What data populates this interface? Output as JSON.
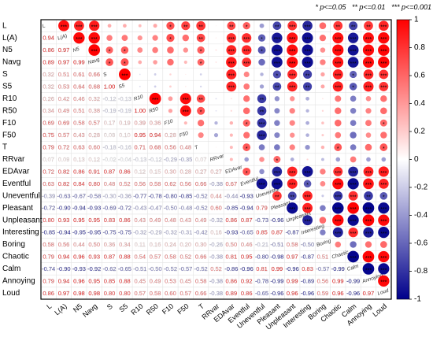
{
  "chart_data": {
    "type": "corrplot",
    "variables": [
      "L",
      "L(A)",
      "N5",
      "Navg",
      "S",
      "S5",
      "R10",
      "R50",
      "F10",
      "F50",
      "T",
      "RRvar",
      "EDAvar",
      "Eventful",
      "Uneventful",
      "Pleasant",
      "Unpleasant",
      "Interesting",
      "Boring",
      "Chaotic",
      "Calm",
      "Annoying",
      "Loud"
    ],
    "matrix": [
      [],
      [
        0.94
      ],
      [
        0.86,
        0.97
      ],
      [
        0.89,
        0.97,
        0.99
      ],
      [
        0.32,
        0.51,
        0.61,
        0.66
      ],
      [
        0.32,
        0.53,
        0.64,
        0.68,
        1.0
      ],
      [
        0.26,
        0.42,
        0.46,
        0.32,
        -0.12,
        -0.13
      ],
      [
        0.34,
        0.49,
        0.51,
        0.38,
        -0.19,
        -0.19,
        1.0
      ],
      [
        0.69,
        0.69,
        0.58,
        0.57,
        0.17,
        0.19,
        0.39,
        0.36
      ],
      [
        0.75,
        0.57,
        0.43,
        0.28,
        0.08,
        0.1,
        0.95,
        0.94,
        0.28
      ],
      [
        0.79,
        0.72,
        0.63,
        0.6,
        -0.18,
        -0.16,
        0.71,
        0.68,
        0.56,
        0.48
      ],
      [
        0.07,
        0.09,
        0.13,
        0.12,
        -0.02,
        -0.04,
        -0.13,
        -0.12,
        -0.29,
        -0.35,
        0.07
      ],
      [
        0.72,
        0.82,
        0.86,
        0.91,
        0.87,
        0.86,
        0.12,
        0.15,
        0.3,
        0.28,
        0.27,
        0.27
      ],
      [
        0.63,
        0.82,
        0.84,
        0.8,
        0.48,
        0.52,
        0.56,
        0.58,
        0.62,
        0.56,
        0.66,
        -0.38,
        0.67
      ],
      [
        -0.39,
        -0.63,
        -0.67,
        -0.58,
        -0.3,
        -0.36,
        -0.77,
        -0.78,
        -0.8,
        -0.85,
        -0.52,
        0.44,
        -0.44,
        -0.93
      ],
      [
        -0.72,
        -0.9,
        -0.94,
        -0.93,
        -0.69,
        -0.72,
        -0.43,
        -0.47,
        -0.5,
        -0.48,
        -0.52,
        0.6,
        -0.85,
        -0.94,
        0.79
      ],
      [
        0.8,
        0.93,
        0.95,
        0.95,
        0.83,
        0.86,
        0.43,
        0.49,
        0.48,
        0.43,
        0.49,
        -0.32,
        0.86,
        0.87,
        -0.73,
        -0.96
      ],
      [
        -0.85,
        -0.94,
        -0.95,
        -0.95,
        -0.75,
        -0.75,
        -0.32,
        -0.29,
        -0.32,
        -0.31,
        -0.42,
        0.16,
        -0.93,
        -0.65,
        0.85,
        0.87,
        -0.87
      ],
      [
        0.58,
        0.56,
        0.44,
        0.5,
        0.36,
        0.34,
        0.11,
        0.16,
        0.24,
        0.2,
        0.3,
        -0.26,
        0.5,
        0.46,
        -0.21,
        -0.51,
        0.58,
        -0.5
      ],
      [
        0.79,
        0.94,
        0.96,
        0.93,
        0.87,
        0.88,
        0.54,
        0.57,
        0.58,
        0.52,
        0.66,
        -0.38,
        0.81,
        0.95,
        -0.8,
        -0.98,
        0.97,
        -0.87,
        0.51
      ],
      [
        -0.74,
        -0.9,
        -0.93,
        -0.92,
        -0.62,
        -0.65,
        -0.51,
        -0.5,
        -0.52,
        -0.57,
        -0.52,
        0.52,
        -0.86,
        -0.96,
        0.81,
        0.99,
        -0.96,
        0.83,
        -0.57,
        -0.99
      ],
      [
        0.79,
        0.94,
        0.96,
        0.95,
        0.85,
        0.88,
        0.45,
        0.49,
        0.53,
        0.45,
        0.58,
        -0.38,
        0.86,
        0.92,
        -0.78,
        -0.99,
        0.99,
        -0.89,
        0.56,
        0.99,
        -0.99
      ],
      [
        0.86,
        0.97,
        0.98,
        0.98,
        0.8,
        0.8,
        0.57,
        0.58,
        0.6,
        0.57,
        0.66,
        -0.38,
        0.89,
        0.86,
        -0.65,
        -0.96,
        0.96,
        -0.96,
        0.59,
        0.96,
        -0.96,
        0.97
      ]
    ],
    "value_labels": [
      [],
      [
        "0.94"
      ],
      [
        "0.86",
        "0.97"
      ],
      [
        "0.89",
        "0.97",
        "0.99"
      ],
      [
        "0.32",
        "0.51",
        "0.61",
        "0.66"
      ],
      [
        "0.32",
        "0.53",
        "0.64",
        "0.68",
        "1.00"
      ],
      [
        "0.26",
        "0.42",
        "0.46",
        "0.32",
        "-0.12",
        "-0.13"
      ],
      [
        "0.34",
        "0.49",
        "0.51",
        "0.38",
        "-0.19",
        "-0.19",
        "1.00"
      ],
      [
        "0.69",
        "0.69",
        "0.58",
        "0.57",
        "0.17",
        "0.19",
        "0.39",
        "0.36"
      ],
      [
        "0.75",
        "0.57",
        "0.43",
        "0.28",
        "0.08",
        "0.10",
        "0.95",
        "0.94",
        "0.28"
      ],
      [
        "0.79",
        "0.72",
        "0.63",
        "0.60",
        "-0.18",
        "-0.16",
        "0.71",
        "0.68",
        "0.56",
        "0.48"
      ],
      [
        "0.07",
        "0.09",
        "0.13",
        "0.12",
        "-0.02",
        "-0.04",
        "-0.13",
        "-0.12",
        "-0.29",
        "-0.35",
        "0.07"
      ],
      [
        "0.72",
        "0.82",
        "0.86",
        "0.91",
        "0.87",
        "0.86",
        "0.12",
        "0.15",
        "0.30",
        "0.28",
        "0.27",
        "0.27"
      ],
      [
        "0.63",
        "0.82",
        "0.84",
        "0.80",
        "0.48",
        "0.52",
        "0.56",
        "0.58",
        "0.62",
        "0.56",
        "0.66",
        "-0.38",
        "0.67"
      ],
      [
        "-0.39",
        "-0.63",
        "-0.67",
        "-0.58",
        "-0.30",
        "-0.36",
        "-0.77",
        "-0.78",
        "-0.80",
        "-0.85",
        "-0.52",
        "0.44",
        "-0.44",
        "-0.93"
      ],
      [
        "-0.72",
        "-0.90",
        "-0.94",
        "-0.93",
        "-0.69",
        "-0.72",
        "-0.43",
        "-0.47",
        "-0.50",
        "-0.48",
        "-0.52",
        "0.60",
        "-0.85",
        "-0.94",
        "0.79"
      ],
      [
        "0.80",
        "0.93",
        "0.95",
        "0.95",
        "0.83",
        "0.86",
        "0.43",
        "0.49",
        "0.48",
        "0.43",
        "0.49",
        "-0.32",
        "0.86",
        "0.87",
        "-0.73",
        "-0.96"
      ],
      [
        "-0.85",
        "-0.94",
        "-0.95",
        "-0.95",
        "-0.75",
        "-0.75",
        "-0.32",
        "-0.29",
        "-0.32",
        "-0.31",
        "-0.42",
        "0.16",
        "-0.93",
        "-0.65",
        "0.85",
        "0.87",
        "-0.87"
      ],
      [
        "0.58",
        "0.56",
        "0.44",
        "0.50",
        "0.36",
        "0.34",
        "0.11",
        "0.16",
        "0.24",
        "0.20",
        "0.30",
        "-0.26",
        "0.50",
        "0.46",
        "-0.21",
        "-0.51",
        "0.58",
        "-0.50"
      ],
      [
        "0.79",
        "0.94",
        "0.96",
        "0.93",
        "0.87",
        "0.88",
        "0.54",
        "0.57",
        "0.58",
        "0.52",
        "0.66",
        "-0.38",
        "0.81",
        "0.95",
        "-0.80",
        "-0.98",
        "0.97",
        "-0.87",
        "0.51"
      ],
      [
        "-0.74",
        "-0.90",
        "-0.93",
        "-0.92",
        "-0.62",
        "-0.65",
        "-0.51",
        "-0.50",
        "-0.52",
        "-0.57",
        "-0.52",
        "0.52",
        "-0.86",
        "-0.96",
        "0.81",
        "0.99",
        "-0.96",
        "0.83",
        "-0.57",
        "-0.99"
      ],
      [
        "0.79",
        "0.94",
        "0.96",
        "0.95",
        "0.85",
        "0.88",
        "0.45",
        "0.49",
        "0.53",
        "0.45",
        "0.58",
        "-0.38",
        "0.86",
        "0.92",
        "-0.78",
        "-0.99",
        "0.99",
        "-0.89",
        "0.56",
        "0.99",
        "-0.99"
      ],
      [
        "0.86",
        "0.97",
        "0.98",
        "0.98",
        "0.80",
        "0.80",
        "0.57",
        "0.58",
        "0.60",
        "0.57",
        "0.66",
        "-0.38",
        "0.89",
        "0.86",
        "-0.65",
        "-0.96",
        "0.96",
        "-0.96",
        "0.59",
        "0.96",
        "-0.96",
        "0.97"
      ]
    ],
    "stars": [
      [],
      [
        "***"
      ],
      [
        "***",
        "***"
      ],
      [
        "***",
        "***",
        "***"
      ],
      [
        null,
        null,
        "*",
        "*"
      ],
      [
        null,
        null,
        "*",
        "*",
        "***"
      ],
      [
        null,
        null,
        null,
        null,
        null,
        null
      ],
      [
        null,
        null,
        null,
        null,
        null,
        null,
        "***"
      ],
      [
        "*",
        "*",
        null,
        null,
        null,
        null,
        null,
        null
      ],
      [
        "**",
        null,
        null,
        null,
        null,
        null,
        "***",
        "***",
        null
      ],
      [
        "**",
        "**",
        "*",
        "*",
        null,
        null,
        "**",
        "*",
        null,
        null
      ],
      [
        null,
        null,
        null,
        null,
        null,
        null,
        null,
        null,
        null,
        null,
        null
      ],
      [
        "**",
        "***",
        "***",
        "***",
        "***",
        "***",
        null,
        null,
        null,
        null,
        null,
        null
      ],
      [
        "*",
        "***",
        "***",
        "***",
        null,
        null,
        null,
        null,
        "*",
        null,
        "*",
        null,
        "*"
      ],
      [
        null,
        "*",
        "*",
        null,
        null,
        null,
        "**",
        "**",
        "***",
        "***",
        null,
        null,
        null,
        "***"
      ],
      [
        "**",
        "***",
        "***",
        "***",
        "*",
        "**",
        null,
        null,
        null,
        null,
        null,
        "*",
        "***",
        "***",
        "**"
      ],
      [
        "***",
        "***",
        "***",
        "***",
        "***",
        "***",
        null,
        null,
        null,
        null,
        null,
        null,
        "***",
        "***",
        "**",
        "***"
      ],
      [
        "***",
        "***",
        "***",
        "***",
        "**",
        "**",
        null,
        null,
        null,
        null,
        null,
        null,
        "***",
        "*",
        "***",
        "***",
        "***"
      ],
      [
        null,
        null,
        null,
        null,
        null,
        null,
        null,
        null,
        null,
        null,
        null,
        null,
        null,
        null,
        null,
        null,
        null,
        null
      ],
      [
        "**",
        "***",
        "***",
        "***",
        "***",
        "***",
        null,
        null,
        null,
        null,
        "*",
        null,
        "***",
        "***",
        "***",
        "***",
        "***",
        "***",
        null
      ],
      [
        "**",
        "***",
        "***",
        "***",
        "*",
        "*",
        null,
        null,
        null,
        null,
        null,
        null,
        "***",
        "***",
        "***",
        "***",
        "***",
        "***",
        null,
        "***"
      ],
      [
        "**",
        "***",
        "***",
        "***",
        "***",
        "***",
        null,
        null,
        null,
        null,
        null,
        null,
        "***",
        "***",
        "**",
        "***",
        "***",
        "***",
        null,
        "***",
        "***"
      ],
      [
        "***",
        "***",
        "***",
        "***",
        "***",
        "***",
        null,
        null,
        "*",
        null,
        "*",
        null,
        "***",
        "***",
        "*",
        "***",
        "***",
        "***",
        null,
        "***",
        "***",
        "***"
      ]
    ],
    "significance_legend": [
      {
        "stars": "*",
        "label": "p<=0.05"
      },
      {
        "stars": "**",
        "label": "p<=0.01"
      },
      {
        "stars": "***",
        "label": "p<=0.001"
      }
    ],
    "colormap": [
      "#00008b",
      "#ffffff",
      "#ff0000"
    ],
    "clim": [
      -1,
      1
    ],
    "cticks": [
      1,
      0.8,
      0.6,
      0.4,
      0.2,
      0,
      -0.2,
      -0.4,
      -0.6,
      -0.8,
      -1
    ]
  }
}
